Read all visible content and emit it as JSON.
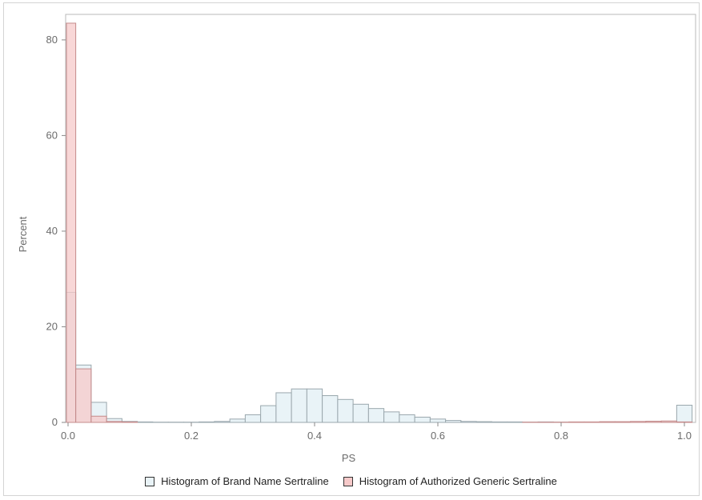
{
  "chart_data": {
    "type": "bar",
    "subtype": "overlaid histogram",
    "xlabel": "PS",
    "ylabel": "Percent",
    "xlim": [
      0,
      1
    ],
    "ylim": [
      0,
      85
    ],
    "x_ticks": [
      "0.0",
      "0.2",
      "0.4",
      "0.6",
      "0.8",
      "1.0"
    ],
    "y_ticks": [
      "0",
      "20",
      "40",
      "60",
      "80"
    ],
    "grid": false,
    "legend_position": "bottom",
    "bin_width": 0.025,
    "bin_centers": [
      0.0,
      0.025,
      0.05,
      0.075,
      0.1,
      0.125,
      0.15,
      0.175,
      0.2,
      0.225,
      0.25,
      0.275,
      0.3,
      0.325,
      0.35,
      0.375,
      0.4,
      0.425,
      0.45,
      0.475,
      0.5,
      0.525,
      0.55,
      0.575,
      0.6,
      0.625,
      0.65,
      0.675,
      0.7,
      0.725,
      0.75,
      0.775,
      0.8,
      0.825,
      0.85,
      0.875,
      0.9,
      0.925,
      0.95,
      0.975,
      1.0
    ],
    "series": [
      {
        "name": "Histogram of Brand Name Sertraline",
        "fill": "#e9f3f7",
        "stroke": "#9aa7ad",
        "values": [
          27.2,
          12.0,
          4.2,
          0.8,
          0.2,
          0.1,
          0.05,
          0.05,
          0.05,
          0.1,
          0.2,
          0.7,
          1.6,
          3.5,
          6.2,
          7.0,
          7.0,
          5.6,
          4.8,
          3.8,
          2.9,
          2.2,
          1.6,
          1.1,
          0.7,
          0.4,
          0.2,
          0.15,
          0.1,
          0.1,
          0.05,
          0.1,
          0.05,
          0.05,
          0.05,
          0.05,
          0.05,
          0.05,
          0.05,
          0.1,
          3.6
        ]
      },
      {
        "name": "Histogram of Authorized Generic Sertraline",
        "fill": "#f6c9c9",
        "stroke": "#c48b8b",
        "values": [
          83.5,
          11.2,
          1.3,
          0.2,
          0.1,
          0,
          0,
          0,
          0,
          0,
          0,
          0,
          0,
          0,
          0,
          0,
          0,
          0,
          0,
          0,
          0,
          0,
          0,
          0,
          0,
          0,
          0,
          0,
          0,
          0,
          0.05,
          0.05,
          0.05,
          0.1,
          0.1,
          0.15,
          0.15,
          0.2,
          0.25,
          0.3,
          0.1
        ]
      }
    ]
  }
}
